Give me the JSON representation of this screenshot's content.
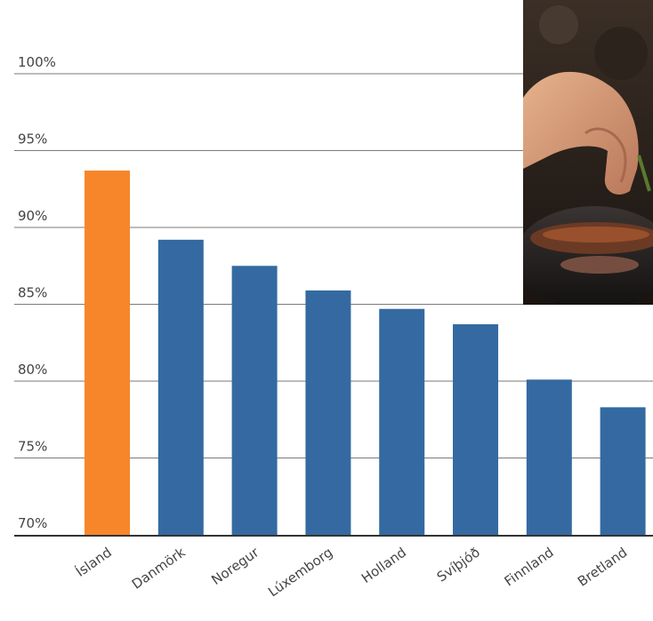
{
  "chart_data": {
    "type": "bar",
    "categories": [
      "Ísland",
      "Danmörk",
      "Noregur",
      "Lúxemborg",
      "Holland",
      "Svíþjóð",
      "Finnland",
      "Bretland"
    ],
    "values": [
      93.7,
      89.2,
      87.5,
      85.9,
      84.7,
      83.7,
      80.1,
      78.3
    ],
    "highlight_index": 0,
    "colors": {
      "highlight": "#f7862a",
      "bar": "#346aa1",
      "grid": "#7a7a7a",
      "axis": "#333333",
      "text": "#444444"
    },
    "yticks": [
      "70%",
      "75%",
      "80%",
      "85%",
      "90%",
      "95%",
      "100%"
    ],
    "ylim": [
      70,
      105
    ],
    "grid": true,
    "title": "",
    "xlabel": "",
    "ylabel": ""
  },
  "photo": {
    "icon": "chef-plating-food-photo"
  }
}
